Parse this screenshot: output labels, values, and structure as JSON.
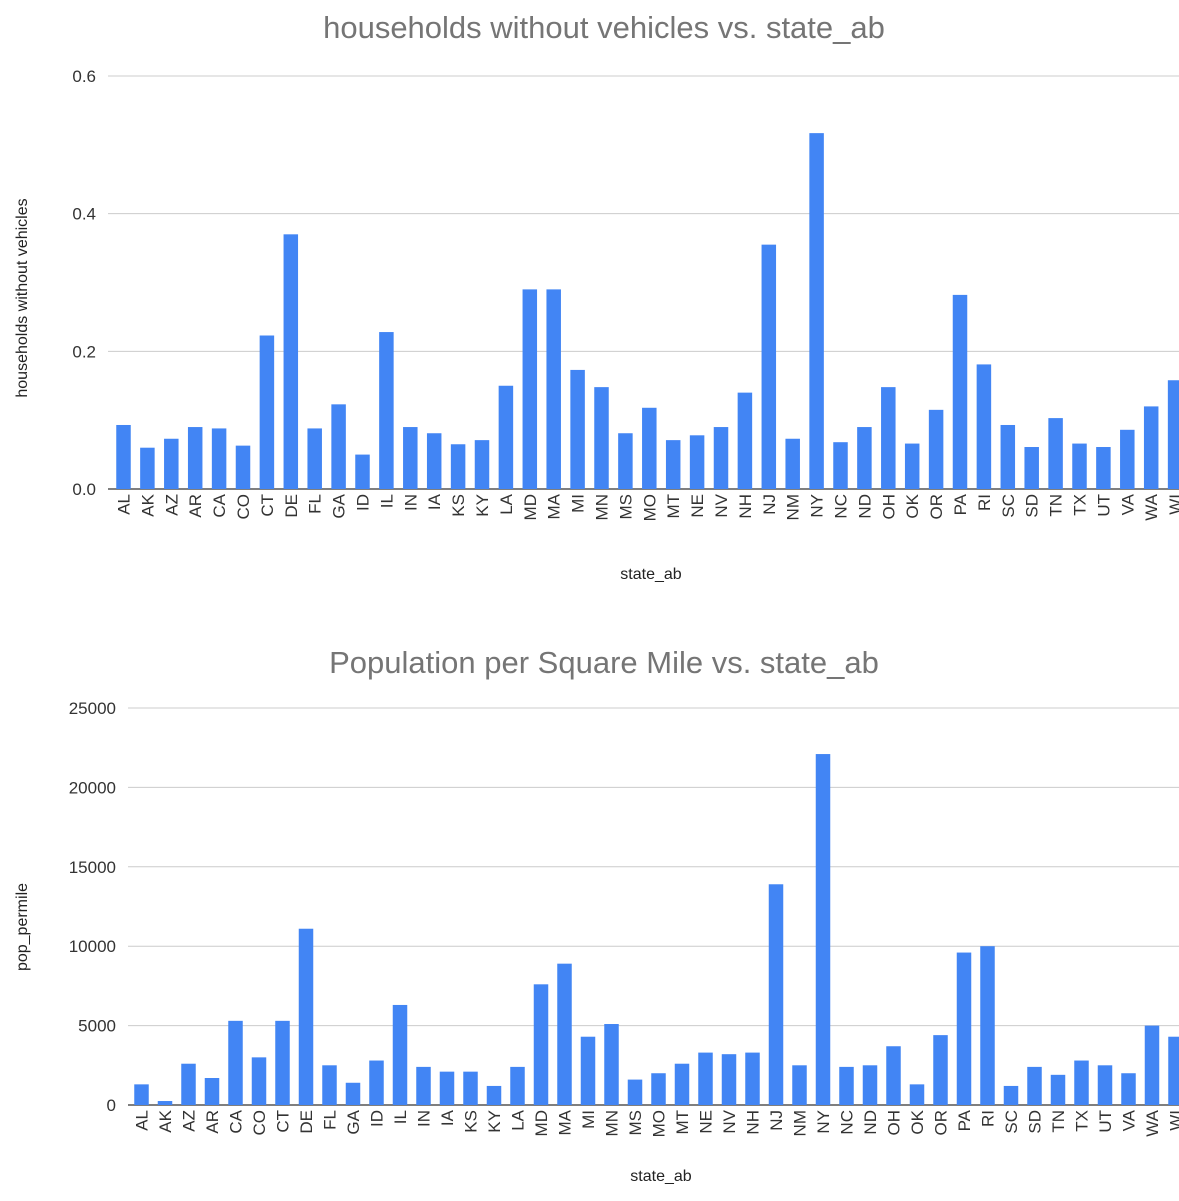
{
  "chart_data": [
    {
      "type": "bar",
      "title": "households without vehicles vs. state_ab",
      "xlabel": "state_ab",
      "ylabel": "households without vehicles",
      "ylim": [
        0,
        0.6
      ],
      "yticks": [
        "0.0",
        "0.2",
        "0.4",
        "0.6"
      ],
      "grid": true,
      "bar_color": "#4285f4",
      "categories": [
        "AL",
        "AK",
        "AZ",
        "AR",
        "CA",
        "CO",
        "CT",
        "DE",
        "FL",
        "GA",
        "ID",
        "IL",
        "IN",
        "IA",
        "KS",
        "KY",
        "LA",
        "MD",
        "MA",
        "MI",
        "MN",
        "MS",
        "MO",
        "MT",
        "NE",
        "NV",
        "NH",
        "NJ",
        "NM",
        "NY",
        "NC",
        "ND",
        "OH",
        "OK",
        "OR",
        "PA",
        "RI",
        "SC",
        "SD",
        "TN",
        "TX",
        "UT",
        "VA",
        "WA",
        "WI"
      ],
      "values": [
        0.093,
        0.06,
        0.073,
        0.09,
        0.088,
        0.063,
        0.223,
        0.37,
        0.088,
        0.123,
        0.05,
        0.228,
        0.09,
        0.081,
        0.065,
        0.071,
        0.15,
        0.29,
        0.29,
        0.173,
        0.148,
        0.081,
        0.118,
        0.071,
        0.078,
        0.09,
        0.14,
        0.355,
        0.073,
        0.517,
        0.068,
        0.09,
        0.148,
        0.066,
        0.115,
        0.282,
        0.181,
        0.093,
        0.061,
        0.103,
        0.066,
        0.061,
        0.086,
        0.12,
        0.158
      ]
    },
    {
      "type": "bar",
      "title": "Population per Square Mile vs. state_ab",
      "xlabel": "state_ab",
      "ylabel": "pop_permile",
      "ylim": [
        0,
        25000
      ],
      "yticks": [
        "0",
        "5000",
        "10000",
        "15000",
        "20000",
        "25000"
      ],
      "grid": true,
      "bar_color": "#4285f4",
      "categories": [
        "AL",
        "AK",
        "AZ",
        "AR",
        "CA",
        "CO",
        "CT",
        "DE",
        "FL",
        "GA",
        "ID",
        "IL",
        "IN",
        "IA",
        "KS",
        "KY",
        "LA",
        "MD",
        "MA",
        "MI",
        "MN",
        "MS",
        "MO",
        "MT",
        "NE",
        "NV",
        "NH",
        "NJ",
        "NM",
        "NY",
        "NC",
        "ND",
        "OH",
        "OK",
        "OR",
        "PA",
        "RI",
        "SC",
        "SD",
        "TN",
        "TX",
        "UT",
        "VA",
        "WA",
        "WI"
      ],
      "values": [
        1300,
        250,
        2600,
        1700,
        5300,
        3000,
        5300,
        11100,
        2500,
        1400,
        2800,
        6300,
        2400,
        2100,
        2100,
        1200,
        2400,
        7600,
        8900,
        4300,
        5100,
        1600,
        2000,
        2600,
        3300,
        3200,
        3300,
        13900,
        2500,
        22100,
        2400,
        2500,
        3700,
        1300,
        4400,
        9600,
        10000,
        1200,
        2400,
        1900,
        2800,
        2500,
        2000,
        5000,
        4300
      ]
    }
  ]
}
